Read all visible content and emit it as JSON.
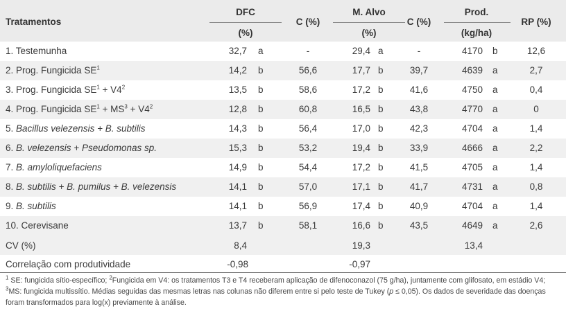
{
  "header": {
    "tratamentos": "Tratamentos",
    "dfc": "DFC",
    "dfc_unit": "(%)",
    "c1": "C (%)",
    "malvo": "M. Alvo",
    "malvo_unit": "(%)",
    "c2": "C (%)",
    "prod": "Prod.",
    "prod_unit": "(kg/ha)",
    "rp": "RP (%)"
  },
  "rows": [
    {
      "name_parts": [
        {
          "t": "1. Testemunha"
        }
      ],
      "dfc": "32,7",
      "dfc_l": "a",
      "c1": "-",
      "malvo": "29,4",
      "malvo_l": "a",
      "c2": "-",
      "prod": "4170",
      "prod_l": "b",
      "rp": "12,6"
    },
    {
      "name_parts": [
        {
          "t": "2. Prog. Fungicida SE"
        },
        {
          "sup": "1"
        }
      ],
      "dfc": "14,2",
      "dfc_l": "b",
      "c1": "56,6",
      "malvo": "17,7",
      "malvo_l": "b",
      "c2": "39,7",
      "prod": "4639",
      "prod_l": "a",
      "rp": "2,7"
    },
    {
      "name_parts": [
        {
          "t": "3. Prog. Fungicida SE"
        },
        {
          "sup": "1"
        },
        {
          "t": " + V4"
        },
        {
          "sup": "2"
        }
      ],
      "dfc": "13,5",
      "dfc_l": "b",
      "c1": "58,6",
      "malvo": "17,2",
      "malvo_l": "b",
      "c2": "41,6",
      "prod": "4750",
      "prod_l": "a",
      "rp": "0,4"
    },
    {
      "name_parts": [
        {
          "t": "4. Prog. Fungicida SE"
        },
        {
          "sup": "1"
        },
        {
          "t": " + MS"
        },
        {
          "sup": "3"
        },
        {
          "t": " + V4"
        },
        {
          "sup": "2"
        }
      ],
      "dfc": "12,8",
      "dfc_l": "b",
      "c1": "60,8",
      "malvo": "16,5",
      "malvo_l": "b",
      "c2": "43,8",
      "prod": "4770",
      "prod_l": "a",
      "rp": "0"
    },
    {
      "name_parts": [
        {
          "t": "5. "
        },
        {
          "i": "Bacillus velezensis + B. subtilis"
        }
      ],
      "dfc": "14,3",
      "dfc_l": "b",
      "c1": "56,4",
      "malvo": "17,0",
      "malvo_l": "b",
      "c2": "42,3",
      "prod": "4704",
      "prod_l": "a",
      "rp": "1,4"
    },
    {
      "name_parts": [
        {
          "t": "6. "
        },
        {
          "i": "B. velezensis + Pseudomonas sp."
        }
      ],
      "dfc": "15,3",
      "dfc_l": "b",
      "c1": "53,2",
      "malvo": "19,4",
      "malvo_l": "b",
      "c2": "33,9",
      "prod": "4666",
      "prod_l": "a",
      "rp": "2,2"
    },
    {
      "name_parts": [
        {
          "t": "7. "
        },
        {
          "i": "B. amyloliquefaciens"
        }
      ],
      "dfc": "14,9",
      "dfc_l": "b",
      "c1": "54,4",
      "malvo": "17,2",
      "malvo_l": "b",
      "c2": "41,5",
      "prod": "4705",
      "prod_l": "a",
      "rp": "1,4"
    },
    {
      "name_parts": [
        {
          "t": "8. "
        },
        {
          "i": "B. subtilis + B. pumilus + B. velezensis"
        }
      ],
      "dfc": "14,1",
      "dfc_l": "b",
      "c1": "57,0",
      "malvo": "17,1",
      "malvo_l": "b",
      "c2": "41,7",
      "prod": "4731",
      "prod_l": "a",
      "rp": "0,8"
    },
    {
      "name_parts": [
        {
          "t": "9. "
        },
        {
          "i": "B. subtilis"
        }
      ],
      "dfc": "14,1",
      "dfc_l": "b",
      "c1": "56,9",
      "malvo": "17,4",
      "malvo_l": "b",
      "c2": "40,9",
      "prod": "4704",
      "prod_l": "a",
      "rp": "1,4"
    },
    {
      "name_parts": [
        {
          "t": "10. Cerevisane"
        }
      ],
      "dfc": "13,7",
      "dfc_l": "b",
      "c1": "58,1",
      "malvo": "16,6",
      "malvo_l": "b",
      "c2": "43,5",
      "prod": "4649",
      "prod_l": "a",
      "rp": "2,6"
    }
  ],
  "cv": {
    "label": "CV (%)",
    "dfc": "8,4",
    "malvo": "19,3",
    "prod": "13,4"
  },
  "corr": {
    "label": "Correlação com produtividade",
    "dfc": "-0,98",
    "malvo": "-0,97"
  },
  "footnotes": {
    "f1_sup": "1",
    "f1a": " SE: fungicida sítio-específico; ",
    "f2_sup": "2",
    "f2": "Fungicida em V4: os tratamentos T3 e T4 receberam aplicação de difenoconazol (75 g/ha), juntamente com glifosato, em estádio V4;",
    "f3_sup": "3",
    "f3a": "MS: fungicida multissítio. Médias seguidas das mesmas letras nas colunas não diferem entre si pelo teste de Tukey (",
    "f3_p": "p",
    "f3b": " ≤ 0,05). Os dados de severidade das doenças",
    "f4": "foram transformados para log(x) previamente à análise."
  },
  "colors": {
    "header_bg": "#ebebeb",
    "stripe_bg": "#f0f0f0",
    "text": "#3a3a3a"
  }
}
